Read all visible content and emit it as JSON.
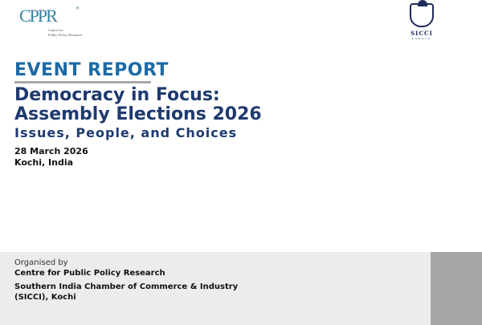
{
  "logos": {
    "cppr": {
      "mark": "CPPR",
      "registered": "®",
      "text_line1": "Centre for",
      "text_line2": "Public Policy Research"
    },
    "sicci": {
      "name": "SICCI",
      "sub": "KERALA"
    }
  },
  "report": {
    "label": "EVENT REPORT",
    "title_line1": "Democracy in Focus:",
    "title_line2": "Assembly Elections 2026",
    "subtitle": "Issues, People, and Choices",
    "date": "28 March 2026",
    "place": "Kochi, India"
  },
  "organisers": {
    "heading": "Organised by",
    "org1": "Centre for Public Policy Research",
    "org2_line1": "Southern India Chamber of Commerce & Industry",
    "org2_line2": "(SICCI), Kochi"
  },
  "colors": {
    "accent": "#1b6aa5",
    "title": "#1f3a70",
    "band": "#ececec",
    "side": "#a6a6a6"
  }
}
